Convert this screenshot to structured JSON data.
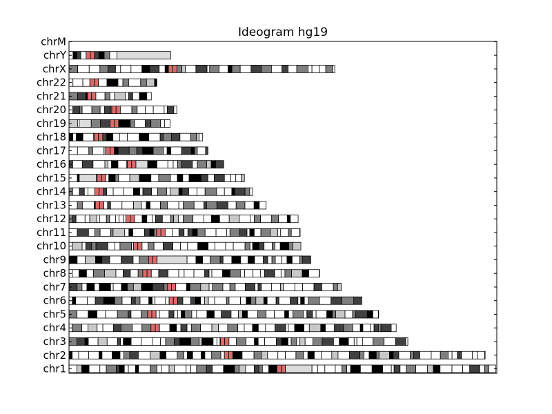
{
  "chart_data": {
    "type": "ideogram",
    "title": "Ideogram hg19",
    "y_categories": [
      "chr1",
      "chr2",
      "chr3",
      "chr4",
      "chr5",
      "chr6",
      "chr7",
      "chr8",
      "chr9",
      "chr10",
      "chr11",
      "chr12",
      "chr13",
      "chr14",
      "chr15",
      "chr16",
      "chr17",
      "chr18",
      "chr19",
      "chr20",
      "chr21",
      "chr22",
      "chrX",
      "chrY",
      "chrM"
    ],
    "lengths_mb": [
      249.3,
      243.2,
      198.0,
      191.2,
      180.9,
      171.1,
      159.1,
      146.4,
      141.2,
      135.5,
      135.0,
      133.9,
      115.2,
      107.3,
      102.5,
      90.4,
      81.2,
      78.1,
      59.1,
      63.0,
      48.1,
      51.3,
      155.3,
      59.4,
      0.017
    ],
    "xlim_mb": [
      0,
      250
    ],
    "stain_colors": {
      "gneg": "#ffffff",
      "gpos25": "#c8c8c8",
      "gpos50": "#808080",
      "gpos75": "#404040",
      "gpos100": "#000000",
      "acen": "#d96b6b",
      "gvar": "#dcdcdc",
      "stalk": "#808080"
    },
    "centromere_mb": [
      124.0,
      93.3,
      91.0,
      50.4,
      48.4,
      61.0,
      59.9,
      45.6,
      49.0,
      40.2,
      53.7,
      35.8,
      17.9,
      17.6,
      19.0,
      36.6,
      24.0,
      17.2,
      26.5,
      27.5,
      13.2,
      14.7,
      60.6,
      12.5,
      null
    ],
    "heterochromatin_mb": [
      [
        124.0,
        142.0
      ],
      null,
      null,
      null,
      null,
      null,
      null,
      null,
      [
        49.0,
        69.0
      ],
      null,
      null,
      null,
      null,
      null,
      [
        6.0,
        16.0
      ],
      [
        38.0,
        46.0
      ],
      null,
      null,
      [
        6.0,
        13.0
      ],
      null,
      null,
      null,
      null,
      [
        28.0,
        59.4
      ],
      null
    ],
    "grid": false
  }
}
